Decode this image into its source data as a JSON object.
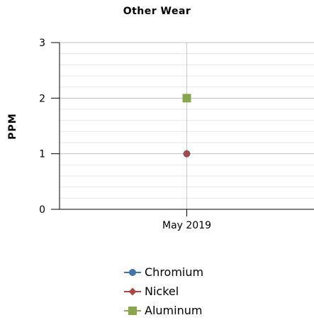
{
  "chart_data": {
    "type": "scatter",
    "title": "Other Wear",
    "ylabel": "PPM",
    "xlabel": "",
    "categories": [
      "May 2019"
    ],
    "ylim": [
      0,
      3
    ],
    "yticks": [
      0,
      1,
      2,
      3
    ],
    "y_minor_step": 0.2,
    "grid": true,
    "legend_position": "bottom",
    "series": [
      {
        "name": "Chromium",
        "values": [
          1
        ],
        "color": "#4572A7",
        "marker": "circle"
      },
      {
        "name": "Nickel",
        "values": [
          1
        ],
        "color": "#AA4643",
        "marker": "diamond"
      },
      {
        "name": "Aluminum",
        "values": [
          2
        ],
        "color": "#89A54E",
        "marker": "square"
      }
    ]
  }
}
